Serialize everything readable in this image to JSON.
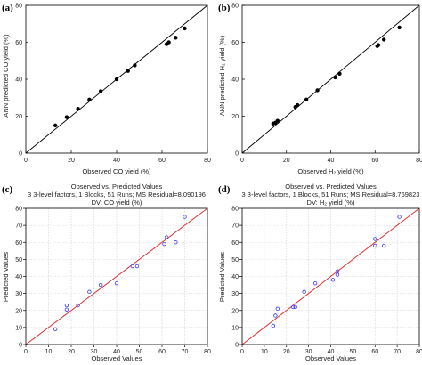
{
  "chart_data": [
    {
      "panel_label": "(a)",
      "type": "scatter",
      "style": "ann",
      "title": [],
      "xlabel": "Observed CO yield (%)",
      "ylabel": "ANN predicted CO yield (%)",
      "xlim": [
        0,
        80
      ],
      "ylim": [
        0,
        80
      ],
      "xticks": [
        0,
        20,
        40,
        60,
        80
      ],
      "yticks": [
        0,
        20,
        40,
        60,
        80
      ],
      "x_tick_labels": [
        "0",
        "20",
        "40",
        "60",
        "80"
      ],
      "y_tick_labels": [
        "0",
        "20",
        "40",
        "60",
        "80"
      ],
      "reference_line": "y = x",
      "grid": false,
      "points": [
        [
          13,
          15
        ],
        [
          18,
          19.5
        ],
        [
          23,
          24
        ],
        [
          28,
          29
        ],
        [
          33,
          33.5
        ],
        [
          40,
          40
        ],
        [
          45,
          44.5
        ],
        [
          48,
          47.5
        ],
        [
          62,
          59
        ],
        [
          63,
          60
        ],
        [
          66,
          62.5
        ],
        [
          70,
          67.5
        ]
      ]
    },
    {
      "panel_label": "(b)",
      "type": "scatter",
      "style": "ann",
      "title": [],
      "xlabel": "Observed H₂ yield (%)",
      "ylabel": "ANN predicted H₂ yield (%)",
      "xlim": [
        0,
        80
      ],
      "ylim": [
        0,
        80
      ],
      "xticks": [
        0,
        20,
        40,
        60,
        80
      ],
      "yticks": [
        0,
        20,
        40,
        60,
        80
      ],
      "x_tick_labels": [
        "0",
        "20",
        "40",
        "60",
        "80"
      ],
      "y_tick_labels": [
        "0",
        "20",
        "40",
        "60",
        "80"
      ],
      "reference_line": "y = x",
      "grid": false,
      "points": [
        [
          14,
          16
        ],
        [
          15,
          16.5
        ],
        [
          16,
          17.5
        ],
        [
          24,
          25
        ],
        [
          25,
          26
        ],
        [
          29,
          29
        ],
        [
          34,
          34
        ],
        [
          42,
          41
        ],
        [
          44,
          43
        ],
        [
          61,
          58
        ],
        [
          61.5,
          58.5
        ],
        [
          64,
          61.5
        ],
        [
          71,
          68
        ]
      ]
    },
    {
      "panel_label": "(c)",
      "type": "scatter",
      "style": "statistica",
      "title": [
        "Observed vs. Predicted Values",
        "3 3-level factors, 1 Blocks, 51 Runs; MS Residual=8.090196",
        "DV: CO yield (%)"
      ],
      "xlabel": "Observed Values",
      "ylabel": "Predicted Values",
      "xlim": [
        0,
        80
      ],
      "ylim": [
        0,
        80
      ],
      "xticks": [
        0,
        10,
        20,
        30,
        40,
        50,
        60,
        70,
        80
      ],
      "yticks": [
        0,
        10,
        20,
        30,
        40,
        50,
        60,
        70,
        80
      ],
      "x_tick_labels": [
        "0",
        "10",
        "20",
        "30",
        "40",
        "50",
        "60",
        "70",
        "80"
      ],
      "y_tick_labels": [
        "0",
        "10",
        "20",
        "30",
        "40",
        "50",
        "60",
        "70",
        "80"
      ],
      "reference_line": "y = x",
      "grid": true,
      "marker_color": "#3a3aff",
      "line_color": "#e03030",
      "points": [
        [
          13,
          9
        ],
        [
          18,
          20.5
        ],
        [
          18,
          23
        ],
        [
          23,
          23
        ],
        [
          28,
          31
        ],
        [
          33,
          35
        ],
        [
          40,
          36
        ],
        [
          47,
          46
        ],
        [
          49,
          46
        ],
        [
          61,
          59
        ],
        [
          62,
          63
        ],
        [
          66,
          60
        ],
        [
          70,
          75
        ]
      ]
    },
    {
      "panel_label": "(d)",
      "type": "scatter",
      "style": "statistica",
      "title": [
        "Observed vs. Predicted Values",
        "3 3-level factors, 1 Blocks, 51 Runs; MS Residual=8.769823",
        "DV: H₂ yield (%)"
      ],
      "xlabel": "Observed Values",
      "ylabel": "Predicted Values",
      "xlim": [
        0,
        80
      ],
      "ylim": [
        0,
        80
      ],
      "xticks": [
        0,
        10,
        20,
        30,
        40,
        50,
        60,
        70,
        80
      ],
      "yticks": [
        0,
        10,
        20,
        30,
        40,
        50,
        60,
        70,
        80
      ],
      "x_tick_labels": [
        "0",
        "10",
        "20",
        "30",
        "40",
        "50",
        "60",
        "70",
        "80"
      ],
      "y_tick_labels": [
        "0",
        "10",
        "20",
        "30",
        "40",
        "50",
        "60",
        "70",
        "80"
      ],
      "reference_line": "y = x",
      "grid": true,
      "marker_color": "#3a3aff",
      "line_color": "#e03030",
      "points": [
        [
          14,
          11
        ],
        [
          15,
          17
        ],
        [
          16,
          21
        ],
        [
          23,
          22
        ],
        [
          24,
          22
        ],
        [
          28,
          31
        ],
        [
          33,
          36
        ],
        [
          41,
          38
        ],
        [
          43,
          41
        ],
        [
          43,
          43
        ],
        [
          60,
          62
        ],
        [
          60,
          58
        ],
        [
          64,
          58
        ],
        [
          71,
          75
        ]
      ]
    }
  ]
}
